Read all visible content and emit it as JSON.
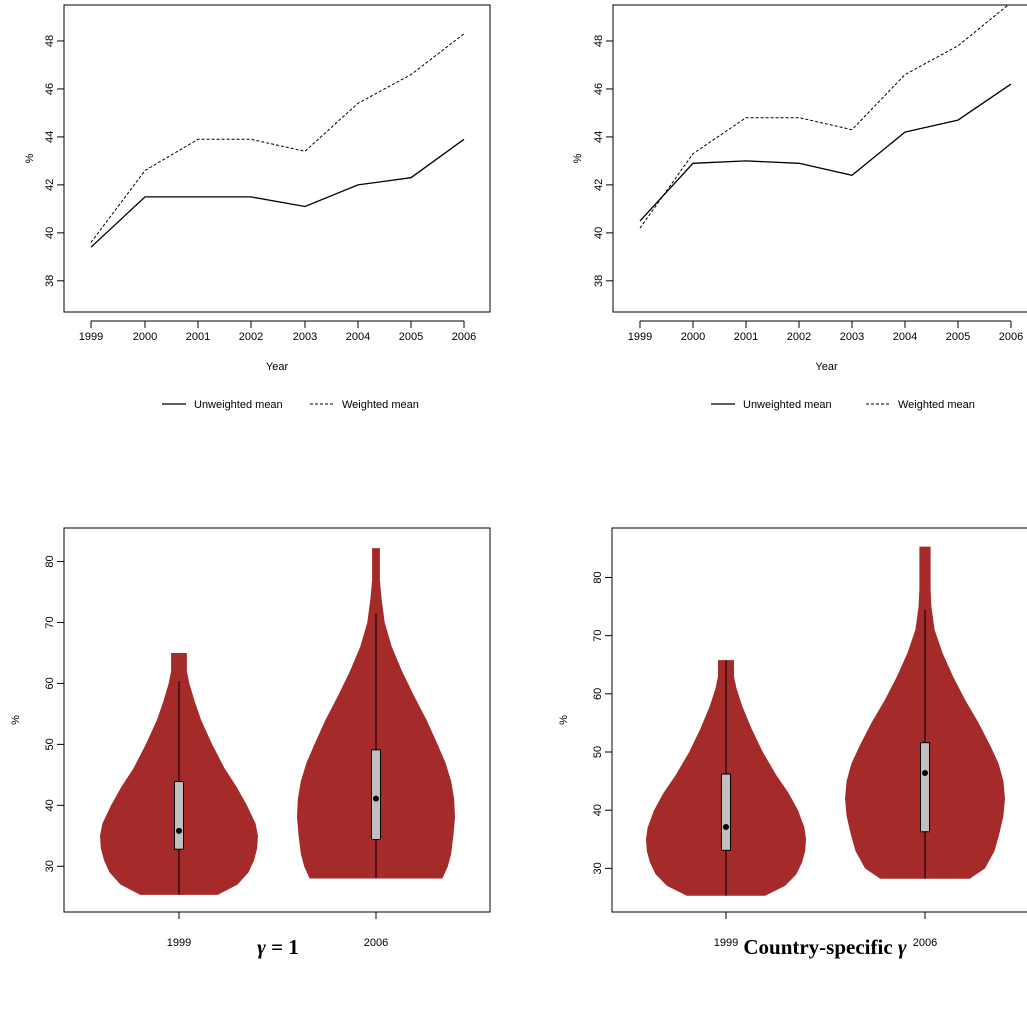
{
  "charts": [
    {
      "chart_data": {
        "type": "line",
        "x": [
          "1999",
          "2000",
          "2001",
          "2002",
          "2003",
          "2004",
          "2005",
          "2006"
        ],
        "series": [
          {
            "name": "Unweighted mean",
            "style": "solid",
            "values": [
              39.4,
              41.5,
              41.5,
              41.5,
              41.1,
              42.0,
              42.3,
              43.9
            ]
          },
          {
            "name": "Weighted mean",
            "style": "dashed",
            "values": [
              39.6,
              42.6,
              43.9,
              43.9,
              43.4,
              45.4,
              46.6,
              48.3
            ]
          }
        ],
        "xlabel": "Year",
        "ylabel": "%",
        "ylim": [
          36.7,
          49.5
        ],
        "yticks": [
          38,
          40,
          42,
          44,
          46,
          48
        ],
        "legend": "bottom"
      }
    },
    {
      "chart_data": {
        "type": "line",
        "x": [
          "1999",
          "2000",
          "2001",
          "2002",
          "2003",
          "2004",
          "2005",
          "2006"
        ],
        "series": [
          {
            "name": "Unweighted mean",
            "style": "solid",
            "values": [
              40.5,
              42.9,
              43.0,
              42.9,
              42.4,
              44.2,
              44.7,
              46.2
            ]
          },
          {
            "name": "Weighted mean",
            "style": "dashed",
            "values": [
              40.2,
              43.3,
              44.8,
              44.8,
              44.3,
              46.6,
              47.8,
              49.6
            ]
          }
        ],
        "xlabel": "Year",
        "ylabel": "%",
        "ylim": [
          36.7,
          49.5
        ],
        "yticks": [
          38,
          40,
          42,
          44,
          46,
          48
        ],
        "legend": "bottom"
      }
    },
    {
      "chart_data": {
        "type": "violin",
        "categories": [
          "1999",
          "2006"
        ],
        "ylabel": "%",
        "ylim": [
          22.5,
          85.5
        ],
        "yticks": [
          30,
          40,
          50,
          60,
          70,
          80
        ],
        "fill_color": "#a52a2a",
        "box_color": "#c0c0c0",
        "groups": [
          {
            "label": "1999",
            "min": 25.3,
            "max": 65.0,
            "q1": 32.8,
            "median": 35.8,
            "q3": 43.9,
            "whisker_high": 60.4,
            "profile": [
              [
                25.3,
                0.49
              ],
              [
                27,
                0.74
              ],
              [
                29,
                0.88
              ],
              [
                31,
                0.95
              ],
              [
                33,
                0.99
              ],
              [
                35,
                1.0
              ],
              [
                37,
                0.97
              ],
              [
                40,
                0.86
              ],
              [
                43,
                0.73
              ],
              [
                46,
                0.58
              ],
              [
                50,
                0.42
              ],
              [
                54,
                0.28
              ],
              [
                57,
                0.2
              ],
              [
                60,
                0.13
              ],
              [
                62,
                0.1
              ],
              [
                65,
                0.1
              ]
            ]
          },
          {
            "label": "2006",
            "min": 28.0,
            "max": 82.2,
            "q1": 34.4,
            "median": 41.1,
            "q3": 49.1,
            "whisker_high": 71.5,
            "profile": [
              [
                28,
                0.84
              ],
              [
                30,
                0.91
              ],
              [
                32,
                0.95
              ],
              [
                35,
                0.98
              ],
              [
                38,
                1.0
              ],
              [
                41,
                0.99
              ],
              [
                44,
                0.95
              ],
              [
                47,
                0.88
              ],
              [
                50,
                0.78
              ],
              [
                54,
                0.64
              ],
              [
                58,
                0.48
              ],
              [
                62,
                0.33
              ],
              [
                66,
                0.2
              ],
              [
                70,
                0.11
              ],
              [
                74,
                0.07
              ],
              [
                77,
                0.05
              ],
              [
                80,
                0.05
              ],
              [
                82.2,
                0.05
              ]
            ]
          }
        ]
      }
    },
    {
      "chart_data": {
        "type": "violin",
        "categories": [
          "1999",
          "2006"
        ],
        "ylabel": "%",
        "ylim": [
          22.5,
          88.5
        ],
        "yticks": [
          30,
          40,
          50,
          60,
          70,
          80
        ],
        "fill_color": "#a52a2a",
        "box_color": "#c0c0c0",
        "groups": [
          {
            "label": "1999",
            "min": 25.3,
            "max": 65.8,
            "q1": 33.1,
            "median": 37.1,
            "q3": 46.2,
            "whisker_high": 65.8,
            "profile": [
              [
                25.3,
                0.49
              ],
              [
                27,
                0.74
              ],
              [
                29,
                0.88
              ],
              [
                31,
                0.95
              ],
              [
                33,
                0.99
              ],
              [
                35,
                1.0
              ],
              [
                37,
                0.98
              ],
              [
                40,
                0.9
              ],
              [
                43,
                0.78
              ],
              [
                46,
                0.63
              ],
              [
                50,
                0.46
              ],
              [
                54,
                0.32
              ],
              [
                58,
                0.2
              ],
              [
                61,
                0.13
              ],
              [
                63,
                0.1
              ],
              [
                65.8,
                0.1
              ]
            ]
          },
          {
            "label": "2006",
            "min": 28.2,
            "max": 85.3,
            "q1": 36.3,
            "median": 46.4,
            "q3": 51.6,
            "whisker_high": 74.5,
            "profile": [
              [
                28.2,
                0.56
              ],
              [
                30,
                0.75
              ],
              [
                33,
                0.87
              ],
              [
                36,
                0.93
              ],
              [
                39,
                0.98
              ],
              [
                42,
                1.0
              ],
              [
                45,
                0.98
              ],
              [
                48,
                0.92
              ],
              [
                51,
                0.82
              ],
              [
                55,
                0.67
              ],
              [
                59,
                0.5
              ],
              [
                63,
                0.35
              ],
              [
                67,
                0.22
              ],
              [
                71,
                0.12
              ],
              [
                75,
                0.08
              ],
              [
                78,
                0.07
              ],
              [
                82,
                0.07
              ],
              [
                85.3,
                0.07
              ]
            ]
          }
        ]
      }
    }
  ],
  "captions": {
    "left": {
      "symbol": "γ",
      "text": " = 1"
    },
    "right": {
      "text": "Country-specific ",
      "symbol": "γ"
    }
  }
}
